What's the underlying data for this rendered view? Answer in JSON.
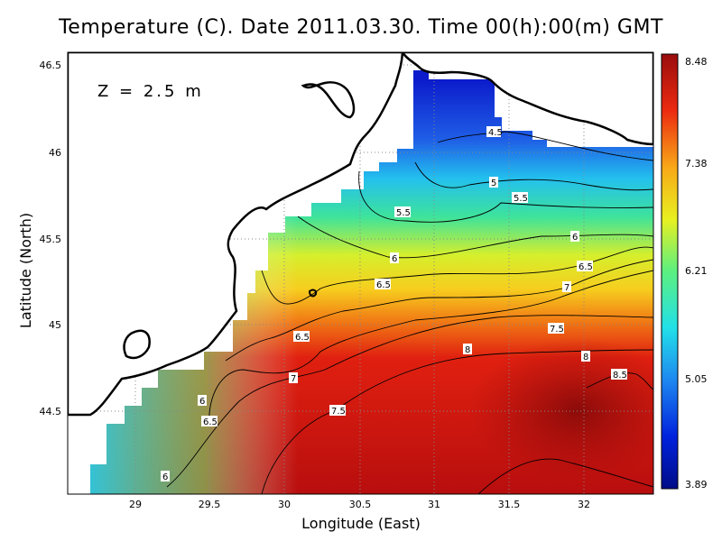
{
  "title": "Temperature (C). Date 2011.03.30. Time 00(h):00(m) GMT",
  "depth_annotation": "Z = 2.5 m",
  "axes": {
    "xlabel": "Longitude (East)",
    "ylabel": "Latitude (North)",
    "x_ticks": [
      "29",
      "29.5",
      "30",
      "30.5",
      "31",
      "31.5",
      "32"
    ],
    "y_ticks": [
      "46.5",
      "46",
      "45.5",
      "45",
      "44.5"
    ]
  },
  "colorbar": {
    "ticks": [
      "8.48",
      "7.38",
      "6.21",
      "5.05",
      "3.89"
    ],
    "min": 3.89,
    "max": 8.48
  },
  "contour_labels": [
    "4.5",
    "5",
    "5.5",
    "5.5",
    "6",
    "6",
    "6",
    "6",
    "6.5",
    "6.5",
    "6.5",
    "6.5",
    "7",
    "7",
    "7.5",
    "7.5",
    "8",
    "8",
    "8.5"
  ],
  "chart_data": {
    "type": "heatmap",
    "title": "Temperature (C). Date 2011.03.30. Time 00(h):00(m) GMT",
    "xlabel": "Longitude (East)",
    "ylabel": "Latitude (North)",
    "xlim": [
      28.55,
      32.45
    ],
    "ylim": [
      44.05,
      46.55
    ],
    "grid": true,
    "value_range": [
      3.89,
      8.48
    ],
    "contour_levels": [
      4.5,
      5,
      5.5,
      6,
      6.5,
      7,
      7.5,
      8,
      8.5
    ]
  }
}
